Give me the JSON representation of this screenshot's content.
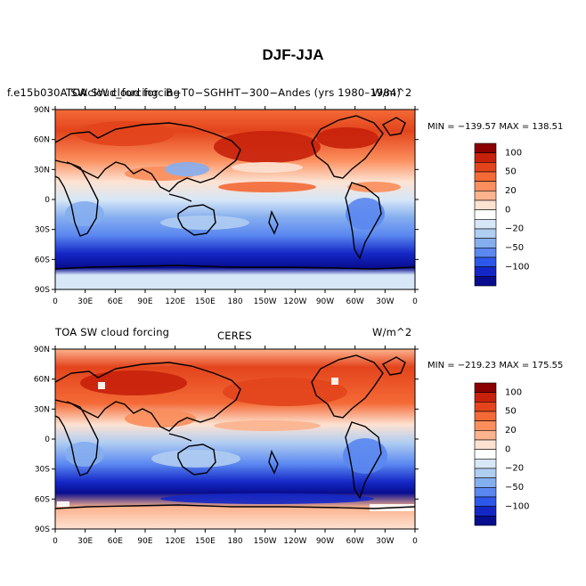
{
  "title": "DJF-JJA",
  "colorbar_colors": [
    "#8b0000",
    "#c8210b",
    "#e3441c",
    "#f46a36",
    "#fb8e5c",
    "#fcb38e",
    "#fde2d2",
    "#ffffff",
    "#d7e7f7",
    "#b0cdf2",
    "#85aeef",
    "#5a87f0",
    "#2d57ea",
    "#1427c6",
    "#080d8f"
  ],
  "colorbar_labels": [
    "100",
    "50",
    "20",
    "0",
    "−20",
    "−50",
    "−100"
  ],
  "lat_ticks": [
    "90N",
    "60N",
    "30N",
    "0",
    "30S",
    "60S",
    "90S"
  ],
  "lon_ticks": [
    "0",
    "30E",
    "60E",
    "90E",
    "120E",
    "150E",
    "180",
    "150W",
    "120W",
    "90W",
    "60W",
    "30W",
    "0"
  ],
  "panels": [
    {
      "left_title": "f.e15b030A.SWcloud_forcing",
      "center_title": "TOA SW cloud forcing",
      "case_title": "B−T0−SGHHT−300−Andes (yrs 1980–1984)",
      "units": "W/m^2",
      "stats": "MIN = −139.57 MAX = 138.51"
    },
    {
      "left_title": "TOA SW cloud forcing",
      "center_title": "CERES",
      "units": "W/m^2",
      "stats": "MIN = −219.23 MAX = 175.55"
    }
  ]
}
